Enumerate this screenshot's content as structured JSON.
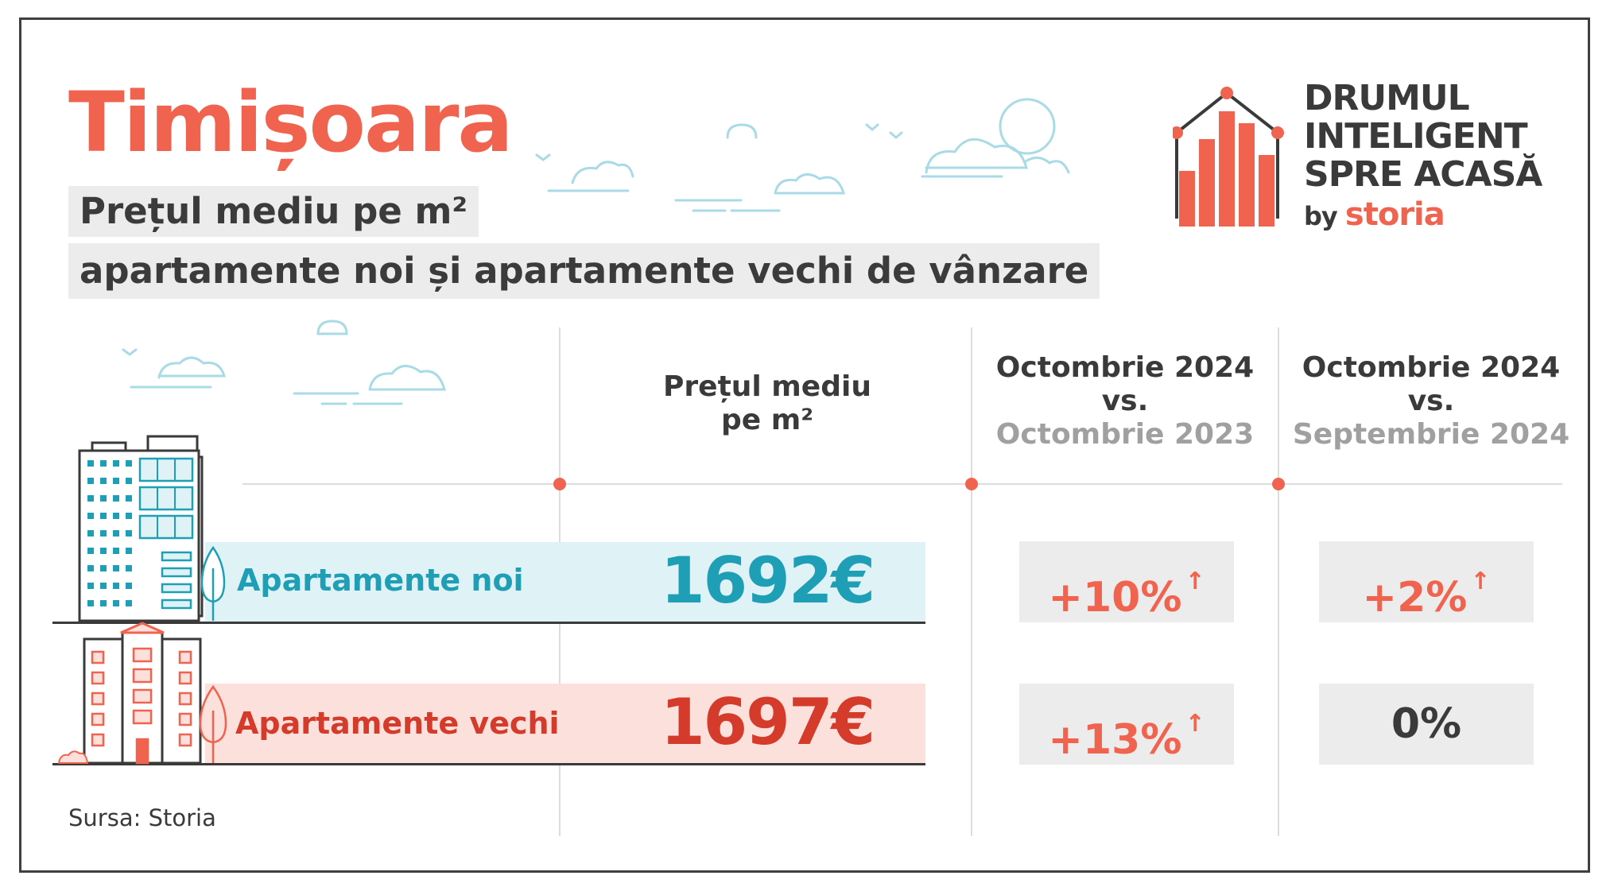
{
  "header": {
    "city": "Timișoara",
    "subtitle_line1": "Prețul mediu pe m²",
    "subtitle_line2": "apartamente noi și apartamente vechi de vânzare"
  },
  "brand": {
    "line1": "DRUMUL",
    "line2": "INTELIGENT",
    "line3": "SPRE ACASĂ",
    "by": "by",
    "name": "storia"
  },
  "columns": {
    "price": {
      "line1": "Prețul mediu",
      "line2": "pe m²"
    },
    "yoy": {
      "line1": "Octombrie 2024",
      "line2": "vs.",
      "line3": "Octombrie 2023"
    },
    "mom": {
      "line1": "Octombrie 2024",
      "line2": "vs.",
      "line3": "Septembrie 2024"
    }
  },
  "rows": [
    {
      "label": "Apartamente noi",
      "price": "1692€",
      "yoy": "+10%",
      "yoy_trend": "up",
      "mom": "+2%",
      "mom_trend": "up"
    },
    {
      "label": "Apartamente vechi",
      "price": "1697€",
      "yoy": "+13%",
      "yoy_trend": "up",
      "mom": "0%",
      "mom_trend": "flat"
    }
  ],
  "source": "Sursa: Storia",
  "colors": {
    "accent": "#f0634f",
    "teal": "#1f9fb5",
    "dark_red": "#d43b2b",
    "noi_band": "#dff2f6",
    "vechi_band": "#fbe0dc",
    "cloud": "#a9dbe6"
  }
}
